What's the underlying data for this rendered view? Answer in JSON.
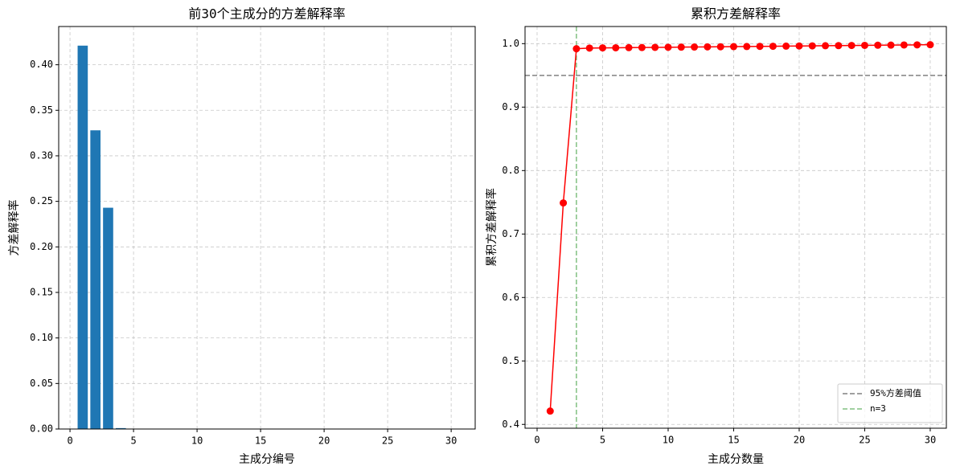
{
  "chart_data": [
    {
      "type": "bar",
      "title": "前30个主成分的方差解释率",
      "x_label": "主成分编号",
      "y_label": "方差解释率",
      "x": [
        1,
        2,
        3,
        4,
        5,
        6,
        7,
        8,
        9,
        10,
        11,
        12,
        13,
        14,
        15,
        16,
        17,
        18,
        19,
        20,
        21,
        22,
        23,
        24,
        25,
        26,
        27,
        28,
        29,
        30
      ],
      "values": [
        0.421,
        0.328,
        0.243,
        0.001,
        0.0003,
        0.0002,
        0.0002,
        0.0002,
        0.0002,
        0.0002,
        0.0002,
        0.0002,
        0.0002,
        0.0002,
        0.0002,
        0.0002,
        0.0002,
        0.0002,
        0.0002,
        0.0002,
        0.0002,
        0.0002,
        0.0002,
        0.0002,
        0.0002,
        0.0002,
        0.0002,
        0.0002,
        0.0002,
        0.0002
      ],
      "color": "#1f77b4",
      "xlim": [
        -0.89,
        31.89
      ],
      "xticks": [
        0,
        5,
        10,
        15,
        20,
        25,
        30
      ],
      "ylim": [
        0,
        0.442
      ],
      "yticks": [
        {
          "value": 0,
          "label": "0.00"
        },
        0.05,
        {
          "value": 0.1,
          "label": "0.10"
        },
        0.15,
        {
          "value": 0.2,
          "label": "0.20"
        },
        0.25,
        {
          "value": 0.3,
          "label": "0.30"
        },
        0.35,
        {
          "value": 0.4,
          "label": "0.40"
        }
      ],
      "grid": true
    },
    {
      "type": "line",
      "title": "累积方差解释率",
      "x_label": "主成分数量",
      "y_label": "累积方差解释率",
      "x": [
        1,
        2,
        3,
        4,
        5,
        6,
        7,
        8,
        9,
        10,
        11,
        12,
        13,
        14,
        15,
        16,
        17,
        18,
        19,
        20,
        21,
        22,
        23,
        24,
        25,
        26,
        27,
        28,
        29,
        30
      ],
      "values": [
        0.421,
        0.749,
        0.992,
        0.993,
        0.9933,
        0.9935,
        0.9937,
        0.9939,
        0.9941,
        0.9943,
        0.9945,
        0.9947,
        0.9949,
        0.9951,
        0.9953,
        0.9955,
        0.9957,
        0.9959,
        0.9961,
        0.9963,
        0.9965,
        0.9967,
        0.9969,
        0.9971,
        0.9973,
        0.9975,
        0.9977,
        0.9979,
        0.9981,
        0.9983
      ],
      "color": "#ff0000",
      "reference_lines": [
        {
          "name": "95%方差阈值",
          "axis": "y",
          "value": 0.95,
          "color": "#808080"
        },
        {
          "name": "n=3",
          "axis": "x",
          "value": 3,
          "color": "#80c080"
        }
      ],
      "legend": "lower right",
      "xlim": [
        -0.92,
        31.23
      ],
      "xticks": [
        0,
        5,
        10,
        15,
        20,
        25,
        30
      ],
      "ylim": [
        0.394,
        1.027
      ],
      "yticks": [
        0.4,
        0.5,
        0.6,
        0.7,
        0.8,
        0.9,
        {
          "value": 1,
          "label": "1.0"
        }
      ],
      "grid": true
    }
  ]
}
